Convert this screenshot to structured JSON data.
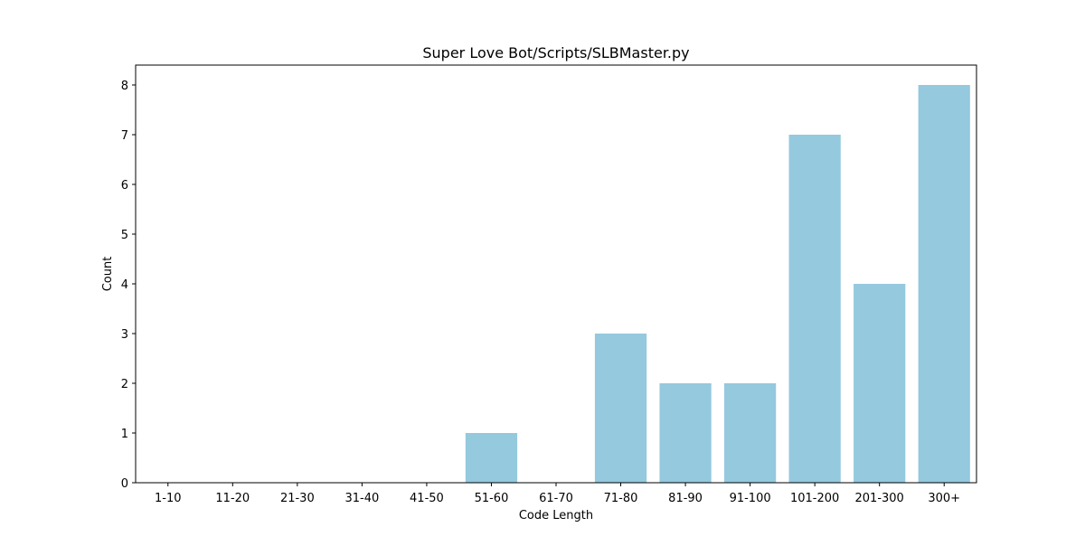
{
  "chart_data": {
    "type": "bar",
    "title": "Super Love Bot/Scripts/SLBMaster.py",
    "xlabel": "Code Length",
    "ylabel": "Count",
    "categories": [
      "1-10",
      "11-20",
      "21-30",
      "31-40",
      "41-50",
      "51-60",
      "61-70",
      "71-80",
      "81-90",
      "91-100",
      "101-200",
      "201-300",
      "300+"
    ],
    "values": [
      0,
      0,
      0,
      0,
      0,
      1,
      0,
      3,
      2,
      2,
      7,
      4,
      8
    ],
    "ylim": [
      0,
      8.4
    ],
    "yticks": [
      0,
      1,
      2,
      3,
      4,
      5,
      6,
      7,
      8
    ],
    "grid": false,
    "bar_color": "#94c9de"
  }
}
